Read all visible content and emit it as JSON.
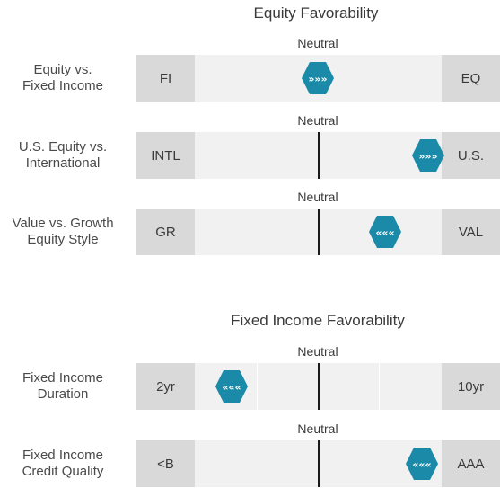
{
  "chart_data": {
    "type": "table",
    "sections": [
      {
        "title": "Equity Favorability",
        "rows": [
          {
            "label_line1": "Equity vs.",
            "label_line2": "Fixed Income",
            "left": "FI",
            "right": "EQ",
            "neutral": "Neutral",
            "arrows": "»»»",
            "direction": "right",
            "position": 0.0,
            "show_center_line": false,
            "show_dividers": false
          },
          {
            "label_line1": "U.S. Equity vs.",
            "label_line2": "International",
            "left": "INTL",
            "right": "U.S.",
            "neutral": "Neutral",
            "arrows": "»»»",
            "direction": "right",
            "position": 0.9,
            "show_center_line": true,
            "show_dividers": false
          },
          {
            "label_line1": "Value vs. Growth",
            "label_line2": "Equity Style",
            "left": "GR",
            "right": "VAL",
            "neutral": "Neutral",
            "arrows": "«««",
            "direction": "left",
            "position": 0.55,
            "show_center_line": true,
            "show_dividers": false
          }
        ]
      },
      {
        "title": "Fixed Income Favorability",
        "rows": [
          {
            "label_line1": "Fixed Income",
            "label_line2": "Duration",
            "left": "2yr",
            "right": "10yr",
            "neutral": "Neutral",
            "arrows": "«««",
            "direction": "left",
            "position": -0.7,
            "show_center_line": true,
            "show_dividers": true
          },
          {
            "label_line1": "Fixed Income",
            "label_line2": "Credit Quality",
            "left": "<B",
            "right": "AAA",
            "neutral": "Neutral",
            "arrows": "«««",
            "direction": "left",
            "position": 0.85,
            "show_center_line": true,
            "show_dividers": false
          }
        ]
      }
    ],
    "colors": {
      "marker": "#1a8aa8",
      "end_box": "#d9d9d9",
      "track": "#f1f1f1"
    }
  }
}
